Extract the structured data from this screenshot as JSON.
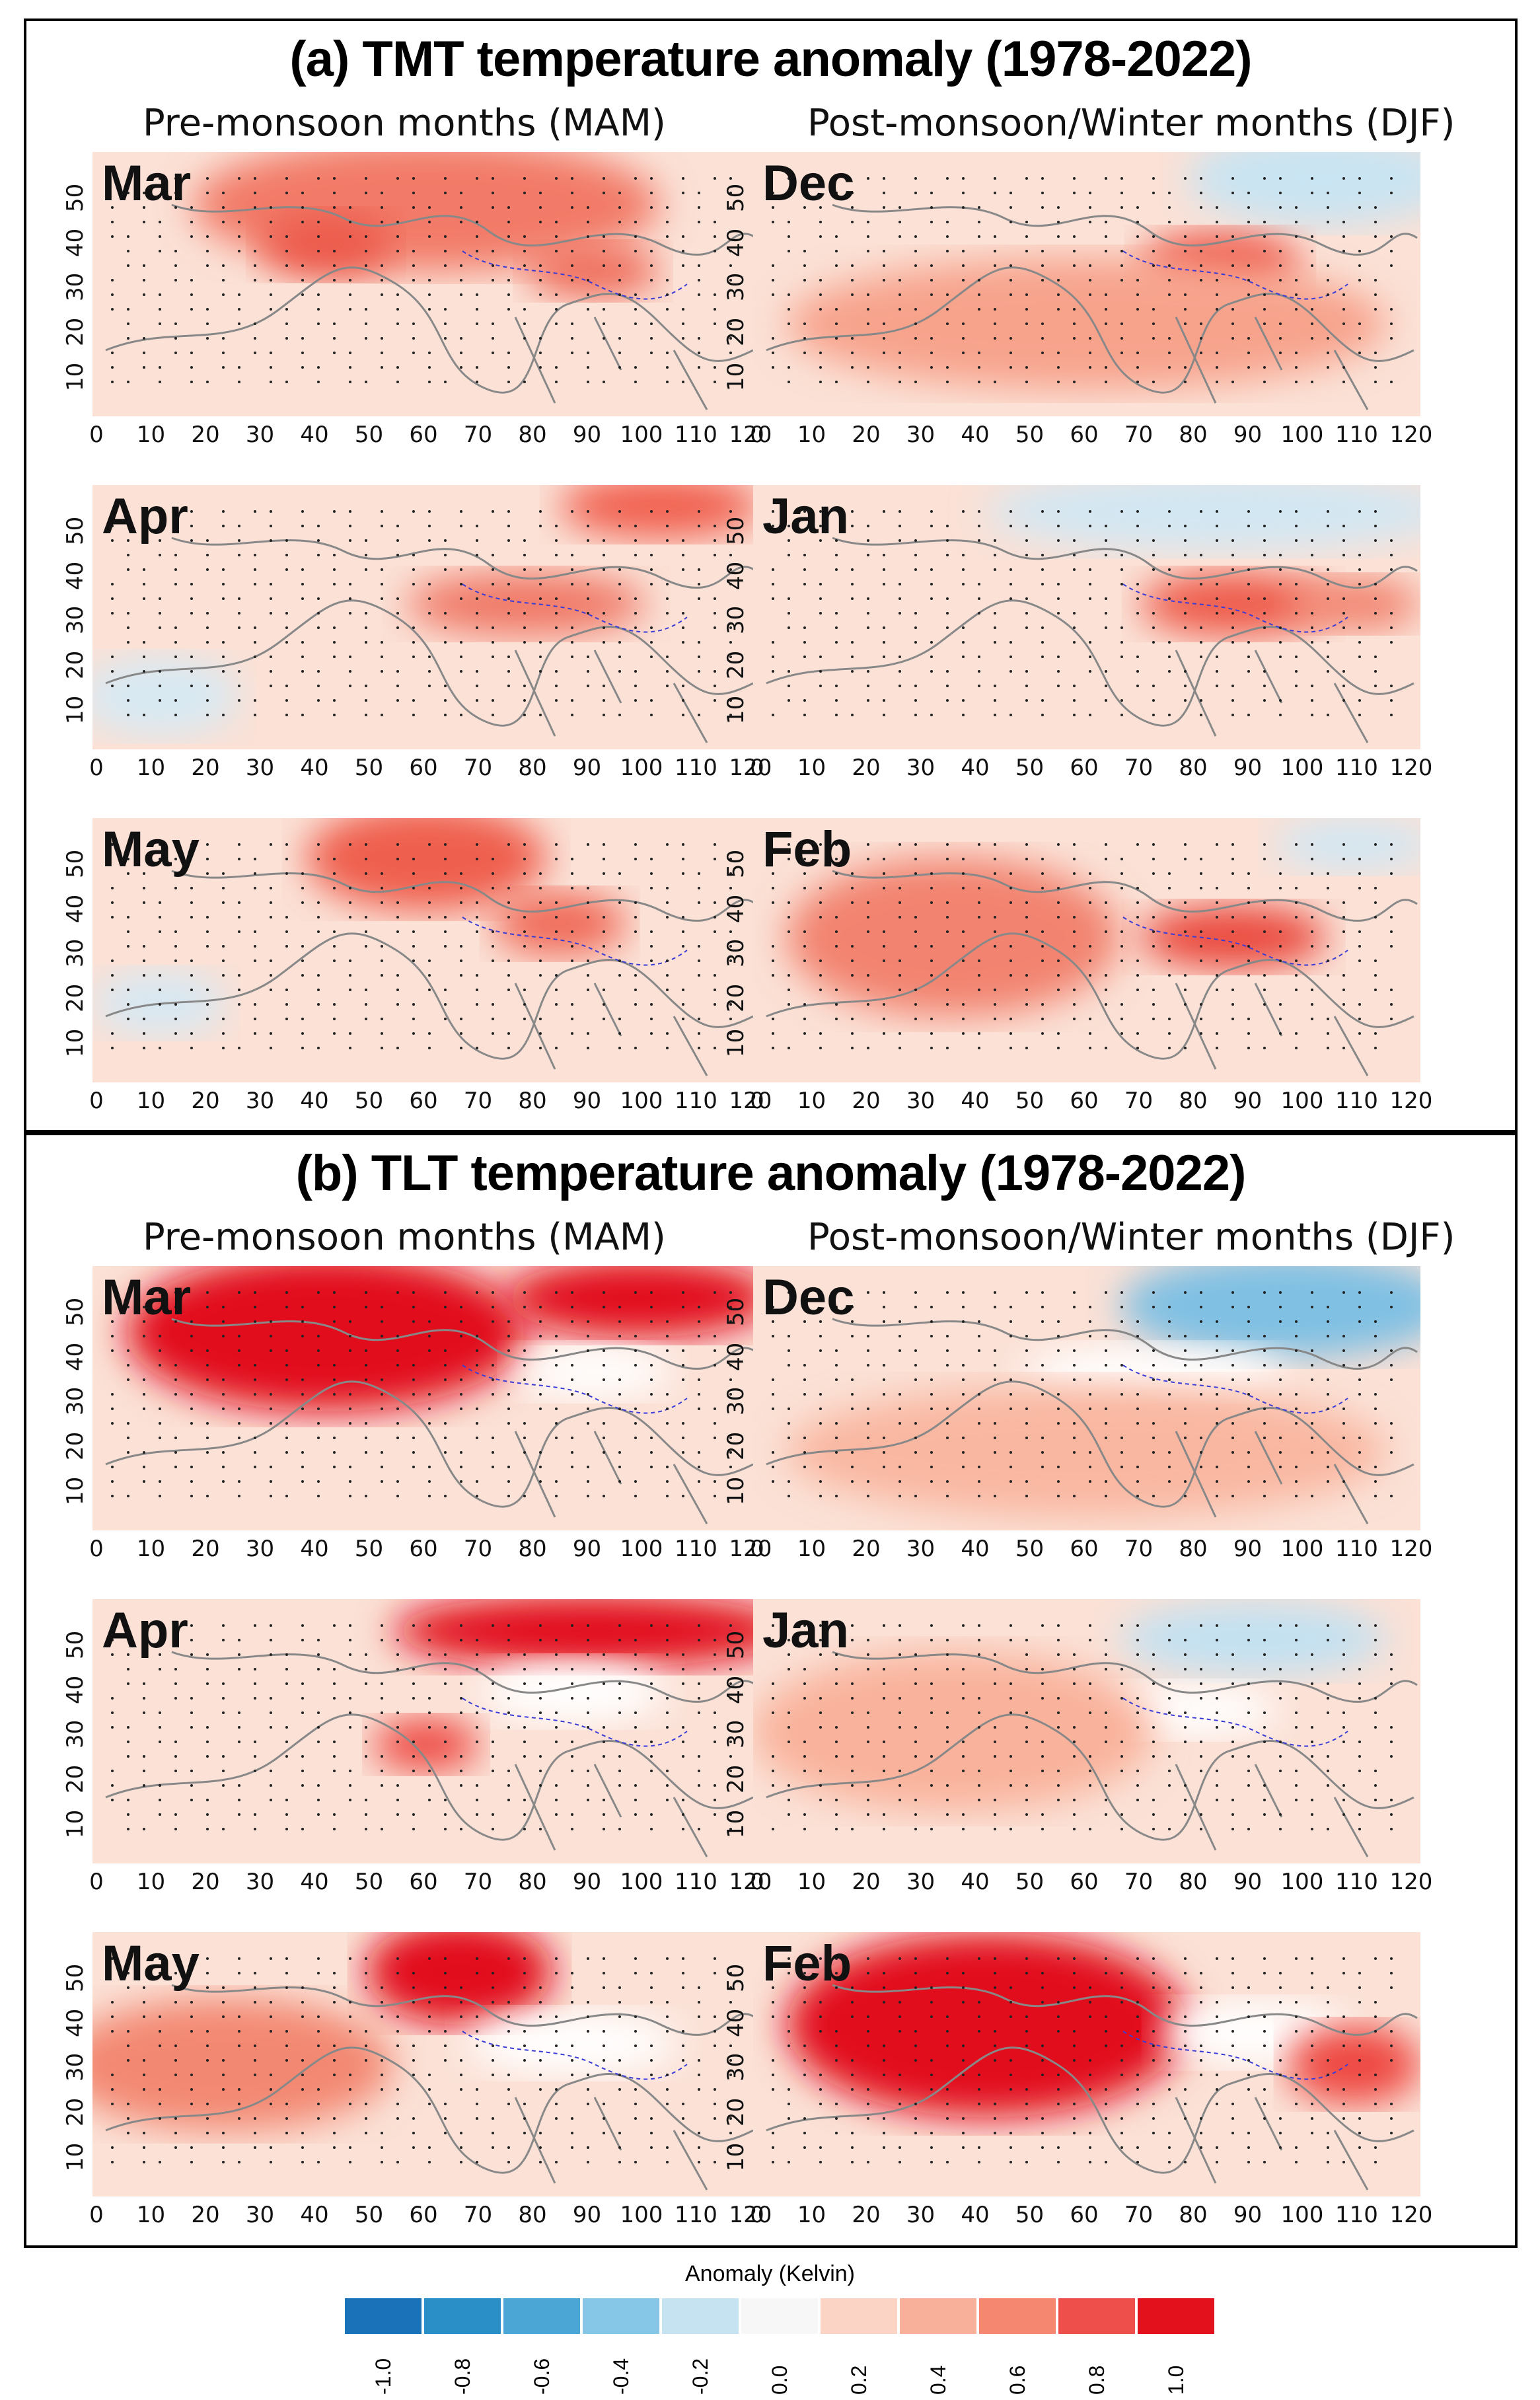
{
  "sections": [
    {
      "title": "(a) TMT  temperature anomaly (1978-2022)",
      "col_left": "Pre-monsoon months (MAM)",
      "col_right": "Post-monsoon/Winter months (DJF)",
      "panels": [
        {
          "month": "Mar",
          "col": 0,
          "row": 0
        },
        {
          "month": "Dec",
          "col": 1,
          "row": 0
        },
        {
          "month": "Apr",
          "col": 0,
          "row": 1
        },
        {
          "month": "Jan",
          "col": 1,
          "row": 1
        },
        {
          "month": "May",
          "col": 0,
          "row": 2
        },
        {
          "month": "Feb",
          "col": 1,
          "row": 2
        }
      ]
    },
    {
      "title": "(b) TLT  temperature anomaly (1978-2022)",
      "col_left": "Pre-monsoon months (MAM)",
      "col_right": "Post-monsoon/Winter months (DJF)",
      "panels": [
        {
          "month": "Mar",
          "col": 0,
          "row": 0
        },
        {
          "month": "Dec",
          "col": 1,
          "row": 0
        },
        {
          "month": "Apr",
          "col": 0,
          "row": 1
        },
        {
          "month": "Jan",
          "col": 1,
          "row": 1
        },
        {
          "month": "May",
          "col": 0,
          "row": 2
        },
        {
          "month": "Feb",
          "col": 1,
          "row": 2
        }
      ]
    }
  ],
  "x_ticks": [
    "0",
    "10",
    "20",
    "30",
    "40",
    "50",
    "60",
    "70",
    "80",
    "90",
    "100",
    "110",
    "120"
  ],
  "y_ticks": [
    "10",
    "20",
    "30",
    "40",
    "50"
  ],
  "legend": {
    "title": "Anomaly (Kelvin)",
    "labels": [
      "-1.0",
      "-0.8",
      "-0.6",
      "-0.4",
      "-0.2",
      "0.0",
      "0.2",
      "0.4",
      "0.6",
      "0.8",
      "1.0"
    ],
    "colors": [
      "#1a72b8",
      "#2a8fc7",
      "#4ba6d6",
      "#86c6e6",
      "#c6e3f1",
      "#f7f7f7",
      "#fcd4c6",
      "#f9b09a",
      "#f5866f",
      "#ef4f4a",
      "#e2111c"
    ]
  }
}
